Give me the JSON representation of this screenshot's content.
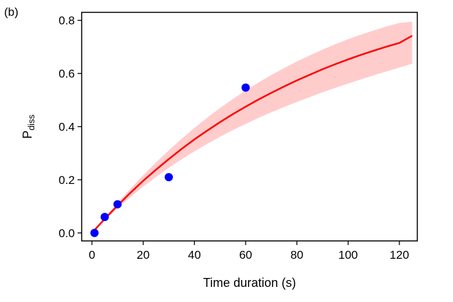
{
  "panel_label": "(b)",
  "chart_data": {
    "type": "scatter",
    "title": "",
    "xlabel": "Time duration (s)",
    "ylabel_main": "P",
    "ylabel_sub": "diss",
    "xlim": [
      -4,
      127
    ],
    "ylim": [
      -0.03,
      0.83
    ],
    "xticks": [
      0,
      20,
      40,
      60,
      80,
      100,
      120
    ],
    "xtick_labels": [
      "0",
      "20",
      "40",
      "60",
      "80",
      "100",
      "120"
    ],
    "yticks": [
      0.0,
      0.2,
      0.4,
      0.6,
      0.8
    ],
    "ytick_labels": [
      "0.0",
      "0.2",
      "0.4",
      "0.6",
      "0.8"
    ],
    "grid": false,
    "legend": "none",
    "series": [
      {
        "kind": "points",
        "x": [
          1,
          5,
          10,
          30,
          60
        ],
        "y": [
          0.0,
          0.06,
          0.108,
          0.21,
          0.547
        ],
        "color": "#0000ff"
      },
      {
        "kind": "line",
        "x": [
          0,
          5,
          10,
          15,
          20,
          25,
          30,
          35,
          40,
          45,
          50,
          55,
          60,
          65,
          70,
          75,
          80,
          85,
          90,
          95,
          100,
          105,
          110,
          115,
          120,
          125
        ],
        "y": [
          0.0,
          0.053,
          0.103,
          0.151,
          0.196,
          0.238,
          0.278,
          0.316,
          0.352,
          0.385,
          0.417,
          0.447,
          0.475,
          0.502,
          0.527,
          0.551,
          0.574,
          0.595,
          0.616,
          0.635,
          0.653,
          0.67,
          0.686,
          0.701,
          0.715,
          0.742
        ],
        "color": "#ff0000"
      },
      {
        "kind": "band",
        "x": [
          0,
          5,
          10,
          15,
          20,
          25,
          30,
          35,
          40,
          45,
          50,
          55,
          60,
          65,
          70,
          75,
          80,
          85,
          90,
          95,
          100,
          105,
          110,
          115,
          120,
          125
        ],
        "y_lower": [
          0.0,
          0.048,
          0.093,
          0.135,
          0.174,
          0.211,
          0.245,
          0.277,
          0.307,
          0.335,
          0.362,
          0.387,
          0.41,
          0.433,
          0.454,
          0.474,
          0.493,
          0.511,
          0.529,
          0.546,
          0.562,
          0.578,
          0.593,
          0.608,
          0.622,
          0.637
        ],
        "y_upper": [
          0.0,
          0.058,
          0.113,
          0.166,
          0.217,
          0.265,
          0.311,
          0.354,
          0.395,
          0.434,
          0.47,
          0.504,
          0.536,
          0.566,
          0.594,
          0.62,
          0.645,
          0.668,
          0.69,
          0.71,
          0.729,
          0.746,
          0.762,
          0.777,
          0.79,
          0.795
        ],
        "color": "#ffcccc"
      }
    ]
  }
}
